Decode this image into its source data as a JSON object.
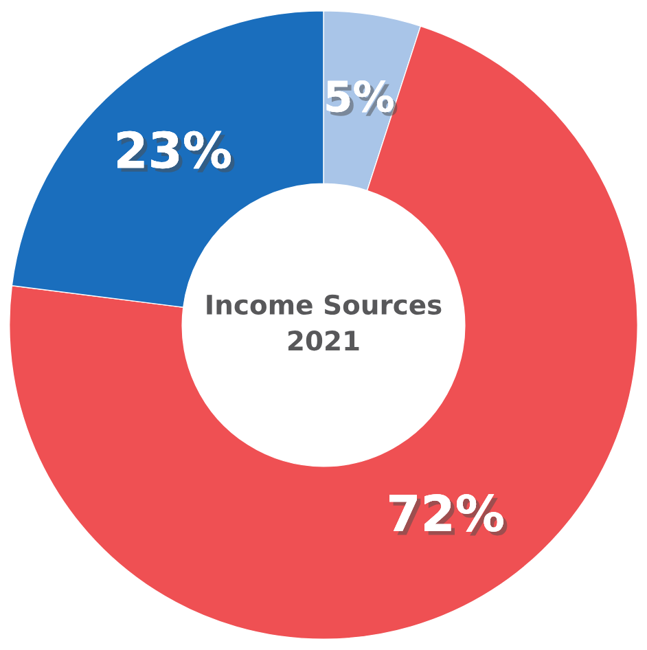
{
  "chart_data": {
    "type": "donut",
    "title": "Income Sources\n2021",
    "categories": [
      null,
      null,
      null
    ],
    "values": [
      5,
      72,
      23
    ],
    "colors": [
      "#a9c5e8",
      "#ef5053",
      "#1a6ebd"
    ],
    "value_labels": [
      "5%",
      "72%",
      "23%"
    ]
  }
}
